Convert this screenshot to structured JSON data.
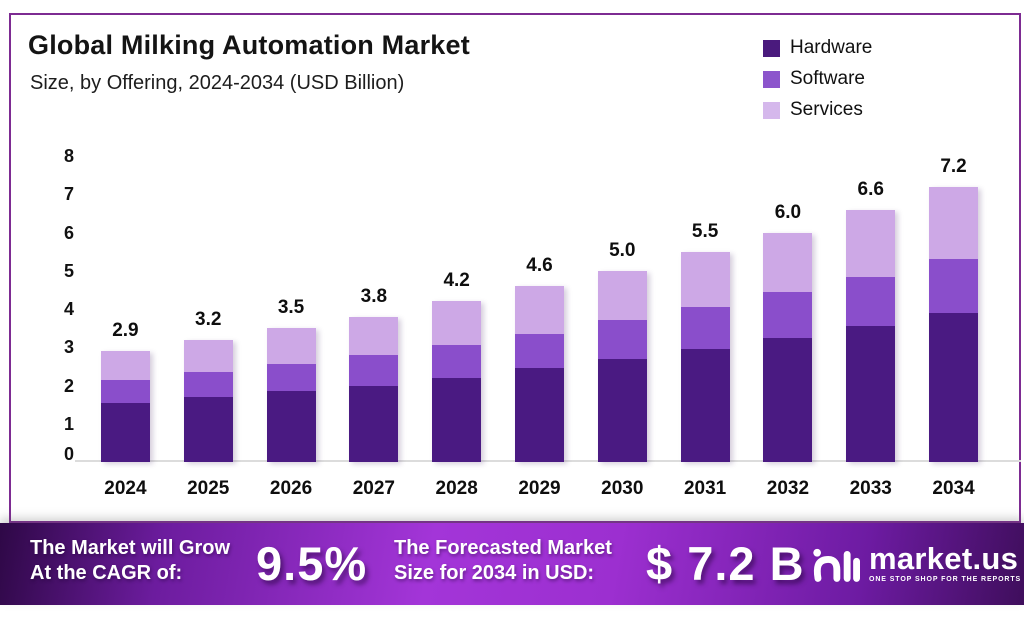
{
  "header": {
    "title": "Global Milking Automation Market",
    "subtitle": "Size, by Offering, 2024-2034 (USD Billion)"
  },
  "legend": [
    {
      "label": "Hardware",
      "color": "#4a1a7d"
    },
    {
      "label": "Software",
      "color": "#8c55cc"
    },
    {
      "label": "Services",
      "color": "#d5b8ec"
    }
  ],
  "chart_data": {
    "type": "bar",
    "stacked": true,
    "title": "Global Milking Automation Market Size, by Offering, 2024-2034 (USD Billion)",
    "categories": [
      "2024",
      "2025",
      "2026",
      "2027",
      "2028",
      "2029",
      "2030",
      "2031",
      "2032",
      "2033",
      "2034"
    ],
    "series": [
      {
        "name": "Hardware",
        "color": "#4a1a82",
        "values": [
          1.55,
          1.7,
          1.85,
          2.0,
          2.2,
          2.45,
          2.7,
          2.95,
          3.25,
          3.55,
          3.9
        ]
      },
      {
        "name": "Software",
        "color": "#8a4ecb",
        "values": [
          0.6,
          0.65,
          0.7,
          0.8,
          0.85,
          0.9,
          1.0,
          1.1,
          1.2,
          1.3,
          1.4
        ]
      },
      {
        "name": "Services",
        "color": "#cda8e6",
        "values": [
          0.75,
          0.85,
          0.95,
          1.0,
          1.15,
          1.25,
          1.3,
          1.45,
          1.55,
          1.75,
          1.9
        ]
      }
    ],
    "totals": [
      "2.9",
      "3.2",
      "3.5",
      "3.8",
      "4.2",
      "4.6",
      "5.0",
      "5.5",
      "6.0",
      "6.6",
      "7.2"
    ],
    "xlabel": "",
    "ylabel": "",
    "ylim": [
      0,
      8
    ],
    "yticks": [
      0,
      1,
      2,
      3,
      4,
      5,
      6,
      7,
      8
    ],
    "grid": false,
    "legend_position": "top-right"
  },
  "footer": {
    "cagr_line1": "The Market will Grow",
    "cagr_line2": "At the CAGR of:",
    "cagr_value": "9.5%",
    "forecast_line1": "The Forecasted Market",
    "forecast_line2": "Size for 2034 in USD:",
    "forecast_value": "$ 7.2 B",
    "brand_name": "market.us",
    "brand_tagline": "ONE STOP SHOP FOR THE REPORTS"
  },
  "colors": {
    "card_border": "#7d2b92",
    "axis_line": "#dcdcdc",
    "text": "#111111",
    "footer_gradient_left": "#2e0846",
    "footer_gradient_mid": "#a335d8",
    "footer_gradient_right": "#3f0e5c"
  }
}
